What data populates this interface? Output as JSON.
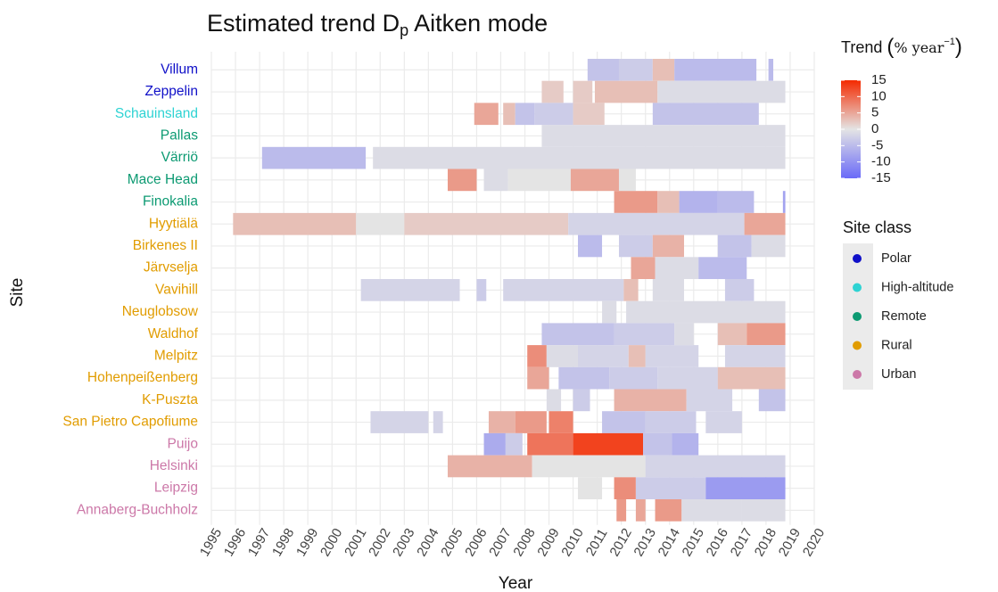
{
  "chart_data": {
    "type": "heatmap",
    "title": [
      "Estimated trend D",
      "p",
      " Aitken mode"
    ],
    "x_label": "Year",
    "y_label": "Site",
    "xlim": [
      1995,
      2020
    ],
    "xticks": [
      1995,
      1996,
      1997,
      1998,
      1999,
      2000,
      2001,
      2002,
      2003,
      2004,
      2005,
      2006,
      2007,
      2008,
      2009,
      2010,
      2011,
      2012,
      2013,
      2014,
      2015,
      2016,
      2017,
      2018,
      2019,
      2020
    ],
    "grid": true,
    "color_title": [
      "Trend ",
      "(",
      "% year",
      "−1",
      ")"
    ],
    "colorlim": [
      -15,
      15
    ],
    "colorticks": [
      15,
      10,
      5,
      0,
      -5,
      -10,
      -15
    ],
    "colorscale": [
      "#6a6af8",
      "#e4e4e4",
      "#f42a00"
    ],
    "class_title": "Site class",
    "classes": [
      {
        "name": "Polar",
        "color": "#1010c8"
      },
      {
        "name": "High-altitude",
        "color": "#2ed3d3"
      },
      {
        "name": "Remote",
        "color": "#0c9a72"
      },
      {
        "name": "Rural",
        "color": "#e19c00"
      },
      {
        "name": "Urban",
        "color": "#cc78a8"
      }
    ],
    "series": [
      {
        "name": "Villum",
        "color": "#1010c8",
        "cells": [
          {
            "start": 2010.6,
            "end": 2011.9,
            "value": -4
          },
          {
            "start": 2011.9,
            "end": 2013.3,
            "value": -3
          },
          {
            "start": 2013.3,
            "end": 2014.2,
            "value": 3
          },
          {
            "start": 2014.2,
            "end": 2017.6,
            "value": -5
          },
          {
            "start": 2018.1,
            "end": 2018.3,
            "value": -5
          }
        ]
      },
      {
        "name": "Zeppelin",
        "color": "#1010c8",
        "cells": [
          {
            "start": 2008.7,
            "end": 2009.6,
            "value": 2
          },
          {
            "start": 2010.0,
            "end": 2010.8,
            "value": 2
          },
          {
            "start": 2010.9,
            "end": 2013.5,
            "value": 3
          },
          {
            "start": 2013.5,
            "end": 2018.8,
            "value": -1
          }
        ]
      },
      {
        "name": "Schauinsland",
        "color": "#2ed3d3",
        "cells": [
          {
            "start": 2005.9,
            "end": 2006.9,
            "value": 5
          },
          {
            "start": 2007.1,
            "end": 2007.6,
            "value": 3
          },
          {
            "start": 2007.6,
            "end": 2008.4,
            "value": -4
          },
          {
            "start": 2008.4,
            "end": 2010.0,
            "value": -3
          },
          {
            "start": 2010.0,
            "end": 2011.3,
            "value": 2
          },
          {
            "start": 2013.3,
            "end": 2017.7,
            "value": -4
          }
        ]
      },
      {
        "name": "Pallas",
        "color": "#0c9a72",
        "cells": [
          {
            "start": 2008.7,
            "end": 2018.8,
            "value": -1
          }
        ]
      },
      {
        "name": "Värriö",
        "color": "#0c9a72",
        "cells": [
          {
            "start": 1997.1,
            "end": 2001.4,
            "value": -5
          },
          {
            "start": 2001.7,
            "end": 2018.8,
            "value": -1
          }
        ]
      },
      {
        "name": "Mace Head",
        "color": "#0c9a72",
        "cells": [
          {
            "start": 2004.8,
            "end": 2006.0,
            "value": 6
          },
          {
            "start": 2006.3,
            "end": 2007.3,
            "value": -1
          },
          {
            "start": 2007.3,
            "end": 2009.9,
            "value": 0
          },
          {
            "start": 2009.9,
            "end": 2011.9,
            "value": 5
          },
          {
            "start": 2011.9,
            "end": 2012.6,
            "value": 0
          }
        ]
      },
      {
        "name": "Finokalia",
        "color": "#0c9a72",
        "cells": [
          {
            "start": 2011.7,
            "end": 2013.5,
            "value": 6
          },
          {
            "start": 2013.5,
            "end": 2014.4,
            "value": 3
          },
          {
            "start": 2014.4,
            "end": 2016.0,
            "value": -6
          },
          {
            "start": 2016.0,
            "end": 2017.5,
            "value": -5
          },
          {
            "start": 2018.7,
            "end": 2018.8,
            "value": -8
          }
        ]
      },
      {
        "name": "Hyytiälä",
        "color": "#e19c00",
        "cells": [
          {
            "start": 1995.9,
            "end": 2001.0,
            "value": 3
          },
          {
            "start": 2001.0,
            "end": 2003.0,
            "value": 0
          },
          {
            "start": 2003.0,
            "end": 2009.8,
            "value": 2
          },
          {
            "start": 2009.8,
            "end": 2017.1,
            "value": -2
          },
          {
            "start": 2017.1,
            "end": 2018.8,
            "value": 5
          }
        ]
      },
      {
        "name": "Birkenes II",
        "color": "#e19c00",
        "cells": [
          {
            "start": 2010.2,
            "end": 2011.2,
            "value": -5
          },
          {
            "start": 2011.9,
            "end": 2013.3,
            "value": -3
          },
          {
            "start": 2013.3,
            "end": 2014.6,
            "value": 4
          },
          {
            "start": 2016.0,
            "end": 2017.4,
            "value": -4
          },
          {
            "start": 2017.4,
            "end": 2018.8,
            "value": -1
          }
        ]
      },
      {
        "name": "Järvselja",
        "color": "#e19c00",
        "cells": [
          {
            "start": 2012.4,
            "end": 2013.4,
            "value": 5
          },
          {
            "start": 2013.4,
            "end": 2015.2,
            "value": -1
          },
          {
            "start": 2015.2,
            "end": 2017.2,
            "value": -5
          }
        ]
      },
      {
        "name": "Vavihill",
        "color": "#e19c00",
        "cells": [
          {
            "start": 2001.2,
            "end": 2005.3,
            "value": -2
          },
          {
            "start": 2006.0,
            "end": 2006.4,
            "value": -3
          },
          {
            "start": 2007.1,
            "end": 2012.1,
            "value": -2
          },
          {
            "start": 2012.1,
            "end": 2012.7,
            "value": 3
          },
          {
            "start": 2013.3,
            "end": 2014.6,
            "value": -1
          },
          {
            "start": 2016.3,
            "end": 2017.5,
            "value": -3
          }
        ]
      },
      {
        "name": "Neuglobsow",
        "color": "#e19c00",
        "cells": [
          {
            "start": 2011.2,
            "end": 2011.8,
            "value": -1
          },
          {
            "start": 2012.2,
            "end": 2018.8,
            "value": -1
          }
        ]
      },
      {
        "name": "Waldhof",
        "color": "#e19c00",
        "cells": [
          {
            "start": 2008.7,
            "end": 2011.7,
            "value": -4
          },
          {
            "start": 2011.7,
            "end": 2014.2,
            "value": -3
          },
          {
            "start": 2014.2,
            "end": 2015.0,
            "value": -1
          },
          {
            "start": 2016.0,
            "end": 2017.2,
            "value": 3
          },
          {
            "start": 2017.2,
            "end": 2018.8,
            "value": 6
          }
        ]
      },
      {
        "name": "Melpitz",
        "color": "#e19c00",
        "cells": [
          {
            "start": 2008.1,
            "end": 2008.9,
            "value": 7
          },
          {
            "start": 2008.9,
            "end": 2010.2,
            "value": -1
          },
          {
            "start": 2010.2,
            "end": 2012.3,
            "value": -2
          },
          {
            "start": 2012.3,
            "end": 2013.0,
            "value": 3
          },
          {
            "start": 2013.0,
            "end": 2015.2,
            "value": -2
          },
          {
            "start": 2016.3,
            "end": 2018.8,
            "value": -2
          }
        ]
      },
      {
        "name": "Hohenpeißenberg",
        "color": "#e19c00",
        "cells": [
          {
            "start": 2008.1,
            "end": 2009.0,
            "value": 5
          },
          {
            "start": 2009.4,
            "end": 2011.5,
            "value": -4
          },
          {
            "start": 2011.5,
            "end": 2013.5,
            "value": -3
          },
          {
            "start": 2013.5,
            "end": 2016.0,
            "value": -2
          },
          {
            "start": 2016.0,
            "end": 2018.8,
            "value": 3
          }
        ]
      },
      {
        "name": "K-Puszta",
        "color": "#e19c00",
        "cells": [
          {
            "start": 2008.9,
            "end": 2009.5,
            "value": -1
          },
          {
            "start": 2010.0,
            "end": 2010.7,
            "value": -3
          },
          {
            "start": 2011.7,
            "end": 2014.7,
            "value": 4
          },
          {
            "start": 2014.7,
            "end": 2016.6,
            "value": -2
          },
          {
            "start": 2017.7,
            "end": 2018.8,
            "value": -4
          }
        ]
      },
      {
        "name": "San Pietro Capofiume",
        "color": "#e19c00",
        "cells": [
          {
            "start": 2001.6,
            "end": 2004.0,
            "value": -2
          },
          {
            "start": 2004.2,
            "end": 2004.6,
            "value": -2
          },
          {
            "start": 2006.5,
            "end": 2007.6,
            "value": 4
          },
          {
            "start": 2007.6,
            "end": 2008.9,
            "value": 6
          },
          {
            "start": 2009.0,
            "end": 2010.0,
            "value": 8
          },
          {
            "start": 2011.2,
            "end": 2013.0,
            "value": -4
          },
          {
            "start": 2013.0,
            "end": 2015.1,
            "value": -3
          },
          {
            "start": 2015.5,
            "end": 2017.0,
            "value": -2
          }
        ]
      },
      {
        "name": "Puijo",
        "color": "#cc78a8",
        "cells": [
          {
            "start": 2006.3,
            "end": 2007.2,
            "value": -7
          },
          {
            "start": 2007.2,
            "end": 2007.9,
            "value": -3
          },
          {
            "start": 2008.1,
            "end": 2010.0,
            "value": 9
          },
          {
            "start": 2010.0,
            "end": 2012.9,
            "value": 13
          },
          {
            "start": 2012.9,
            "end": 2014.1,
            "value": -4
          },
          {
            "start": 2014.1,
            "end": 2015.2,
            "value": -6
          }
        ]
      },
      {
        "name": "Helsinki",
        "color": "#cc78a8",
        "cells": [
          {
            "start": 2004.8,
            "end": 2008.3,
            "value": 4
          },
          {
            "start": 2008.3,
            "end": 2013.0,
            "value": 0
          },
          {
            "start": 2013.0,
            "end": 2018.8,
            "value": -2
          }
        ]
      },
      {
        "name": "Leipzig",
        "color": "#cc78a8",
        "cells": [
          {
            "start": 2010.2,
            "end": 2011.2,
            "value": 0
          },
          {
            "start": 2011.7,
            "end": 2012.6,
            "value": 7
          },
          {
            "start": 2012.6,
            "end": 2015.5,
            "value": -3
          },
          {
            "start": 2015.5,
            "end": 2018.8,
            "value": -9
          }
        ]
      },
      {
        "name": "Annaberg-Buchholz",
        "color": "#cc78a8",
        "cells": [
          {
            "start": 2011.8,
            "end": 2012.2,
            "value": 6
          },
          {
            "start": 2012.6,
            "end": 2013.0,
            "value": 5
          },
          {
            "start": 2013.4,
            "end": 2014.5,
            "value": 6
          },
          {
            "start": 2014.5,
            "end": 2017.0,
            "value": -1
          },
          {
            "start": 2017.0,
            "end": 2018.8,
            "value": -1
          }
        ]
      }
    ]
  }
}
